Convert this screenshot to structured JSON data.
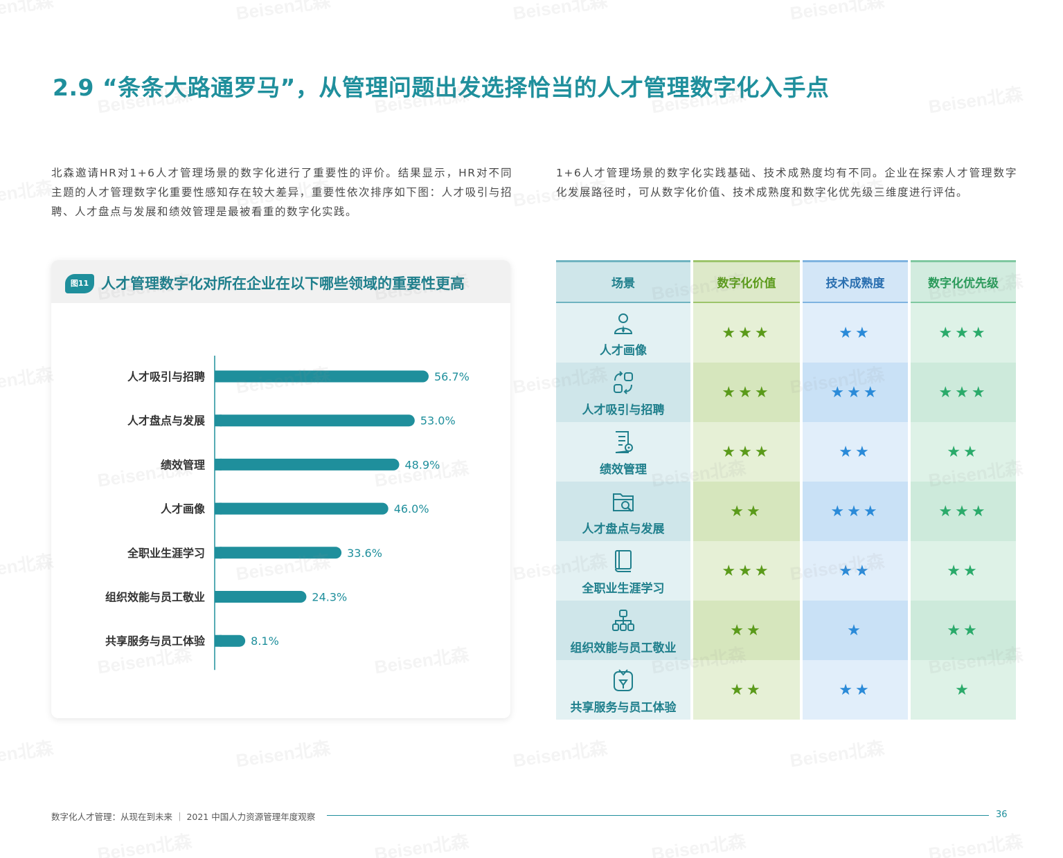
{
  "title": "2.9 “条条大路通罗马”，从管理问题出发选择恰当的人才管理数字化入手点",
  "paragraphs": {
    "left": "北森邀请HR对1+6人才管理场景的数字化进行了重要性的评价。结果显示，HR对不同主题的人才管理数字化重要性感知存在较大差异，重要性依次排序如下图：人才吸引与招聘、人才盘点与发展和绩效管理是最被看重的数字化实践。",
    "right": "1+6人才管理场景的数字化实践基础、技术成熟度均有不同。企业在探索人才管理数字化发展路径时，可从数字化价值、技术成熟度和数字化优先级三维度进行评估。"
  },
  "figure": {
    "badge": "图11",
    "title": "人才管理数字化对所在企业在以下哪些领域的重要性更高"
  },
  "chart_data": {
    "type": "bar",
    "orientation": "horizontal",
    "categories": [
      "人才吸引与招聘",
      "人才盘点与发展",
      "绩效管理",
      "人才画像",
      "全职业生涯学习",
      "组织效能与员工敬业",
      "共享服务与员工体验"
    ],
    "values": [
      56.7,
      53.0,
      48.9,
      46.0,
      33.6,
      24.3,
      8.1
    ],
    "value_labels": [
      "56.7%",
      "53.0%",
      "48.9%",
      "46.0%",
      "33.6%",
      "24.3%",
      "8.1%"
    ],
    "unit": "%",
    "xlim": [
      0,
      100
    ],
    "bar_color": "#1f8f9c",
    "grid": false
  },
  "table": {
    "headers": [
      "场景",
      "数字化价值",
      "技术成熟度",
      "数字化优先级"
    ],
    "header_colors": [
      "#1f7f8c",
      "#5a9a1a",
      "#2a6fb0",
      "#2a9a5a"
    ],
    "star_colors": [
      "#5a9a1a",
      "#2a8ad8",
      "#2aaa6a"
    ],
    "rows": [
      {
        "scene": "人才画像",
        "icon": "person-icon",
        "value": "★★★",
        "maturity": "★★",
        "priority": "★★★"
      },
      {
        "scene": "人才吸引与招聘",
        "icon": "recruit-cycle-icon",
        "value": "★★★",
        "maturity": "★★★",
        "priority": "★★★"
      },
      {
        "scene": "绩效管理",
        "icon": "document-gear-icon",
        "value": "★★★",
        "maturity": "★★",
        "priority": "★★"
      },
      {
        "scene": "人才盘点与发展",
        "icon": "folder-search-icon",
        "value": "★★",
        "maturity": "★★★",
        "priority": "★★★"
      },
      {
        "scene": "全职业生涯学习",
        "icon": "book-icon",
        "value": "★★★",
        "maturity": "★★",
        "priority": "★★"
      },
      {
        "scene": "组织效能与员工敬业",
        "icon": "org-chart-icon",
        "value": "★★",
        "maturity": "★",
        "priority": "★★"
      },
      {
        "scene": "共享服务与员工体验",
        "icon": "service-badge-icon",
        "value": "★★",
        "maturity": "★★",
        "priority": "★"
      }
    ]
  },
  "footer": {
    "text": "数字化人才管理：从现在到未来 ｜ 2021 中国人力资源管理年度观察",
    "page": "36"
  },
  "watermark": "Beisen北森"
}
